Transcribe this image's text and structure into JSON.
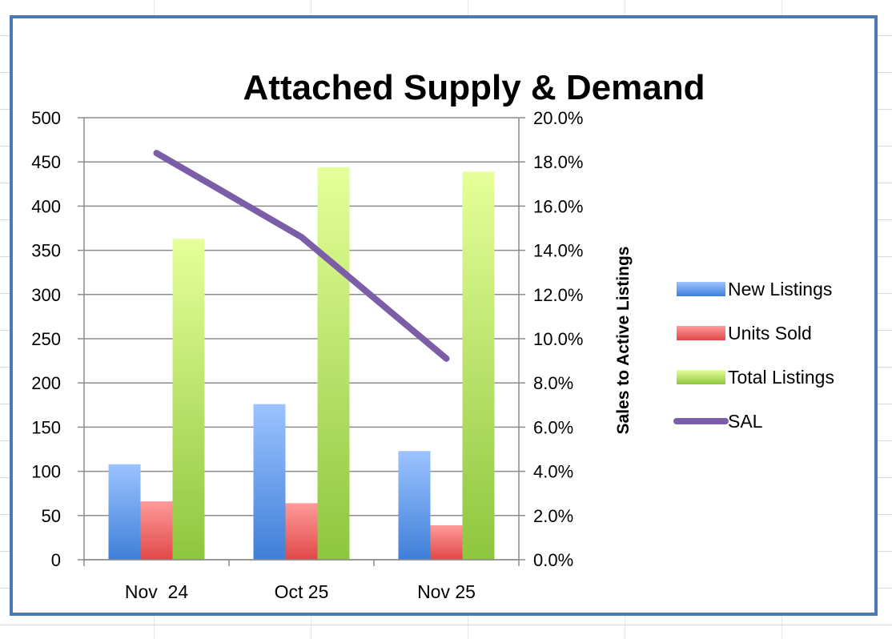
{
  "chart_data": {
    "type": "bar",
    "title": "Attached Supply & Demand",
    "categories": [
      "Nov  24",
      "Oct 25",
      "Nov 25"
    ],
    "series": [
      {
        "name": "New Listings",
        "kind": "bar",
        "axis": "left",
        "values": [
          108,
          176,
          123
        ],
        "color_top": "#9cc3ff",
        "color_bottom": "#3f7fd8"
      },
      {
        "name": "Units Sold",
        "kind": "bar",
        "axis": "left",
        "values": [
          66,
          64,
          39
        ],
        "color_top": "#ff9a9a",
        "color_bottom": "#e04848"
      },
      {
        "name": "Total Listings",
        "kind": "bar",
        "axis": "left",
        "values": [
          363,
          444,
          439
        ],
        "color_top": "#e6ff9a",
        "color_bottom": "#8ec63f"
      },
      {
        "name": "SAL",
        "kind": "line",
        "axis": "right",
        "values": [
          0.184,
          0.146,
          0.091
        ],
        "color": "#7b5ea7"
      }
    ],
    "y_left": {
      "min": 0,
      "max": 500,
      "step": 50,
      "ticks": [
        "0",
        "50",
        "100",
        "150",
        "200",
        "250",
        "300",
        "350",
        "400",
        "450",
        "500"
      ]
    },
    "y_right": {
      "min": 0,
      "max": 0.2,
      "label": "Sales to Active Listings",
      "ticks": [
        "0.0%",
        "2.0%",
        "4.0%",
        "6.0%",
        "8.0%",
        "10.0%",
        "12.0%",
        "14.0%",
        "16.0%",
        "18.0%",
        "20.0%"
      ]
    },
    "gridlines": true,
    "legend_position": "right"
  }
}
